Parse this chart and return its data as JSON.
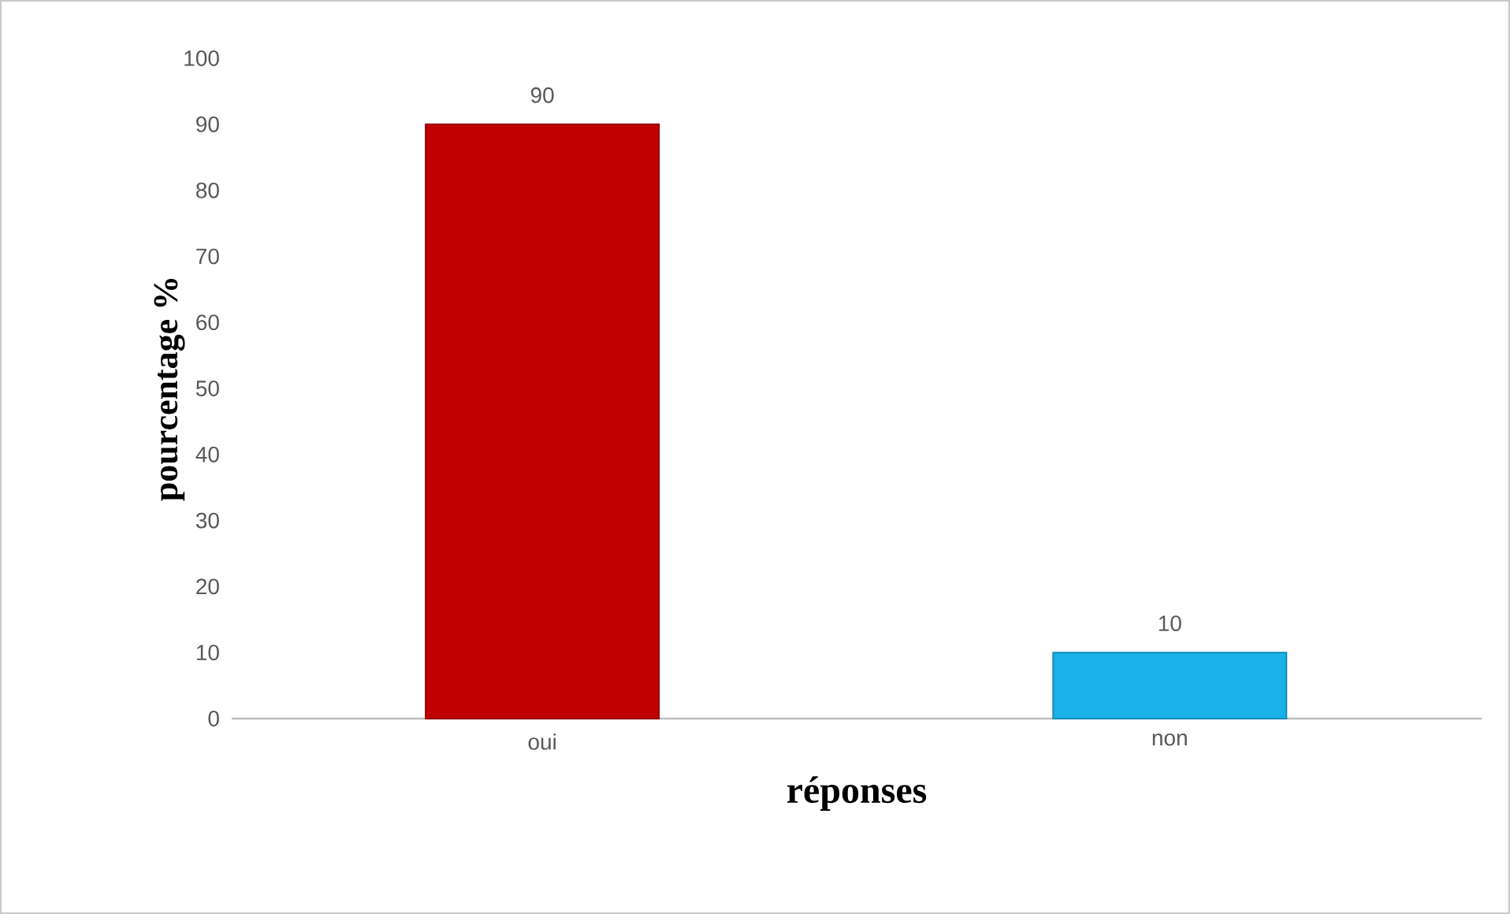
{
  "chart_data": {
    "type": "bar",
    "xlabel": "réponses",
    "ylabel": "pourcentage %",
    "categories": [
      "oui",
      "non"
    ],
    "values": [
      90,
      10
    ],
    "colors": [
      "#c00000",
      "#1ab0e8"
    ],
    "ylim": [
      0,
      100
    ],
    "yticks": [
      0,
      10,
      20,
      30,
      40,
      50,
      60,
      70,
      80,
      90,
      100
    ],
    "data_labels": true,
    "grid": false
  }
}
